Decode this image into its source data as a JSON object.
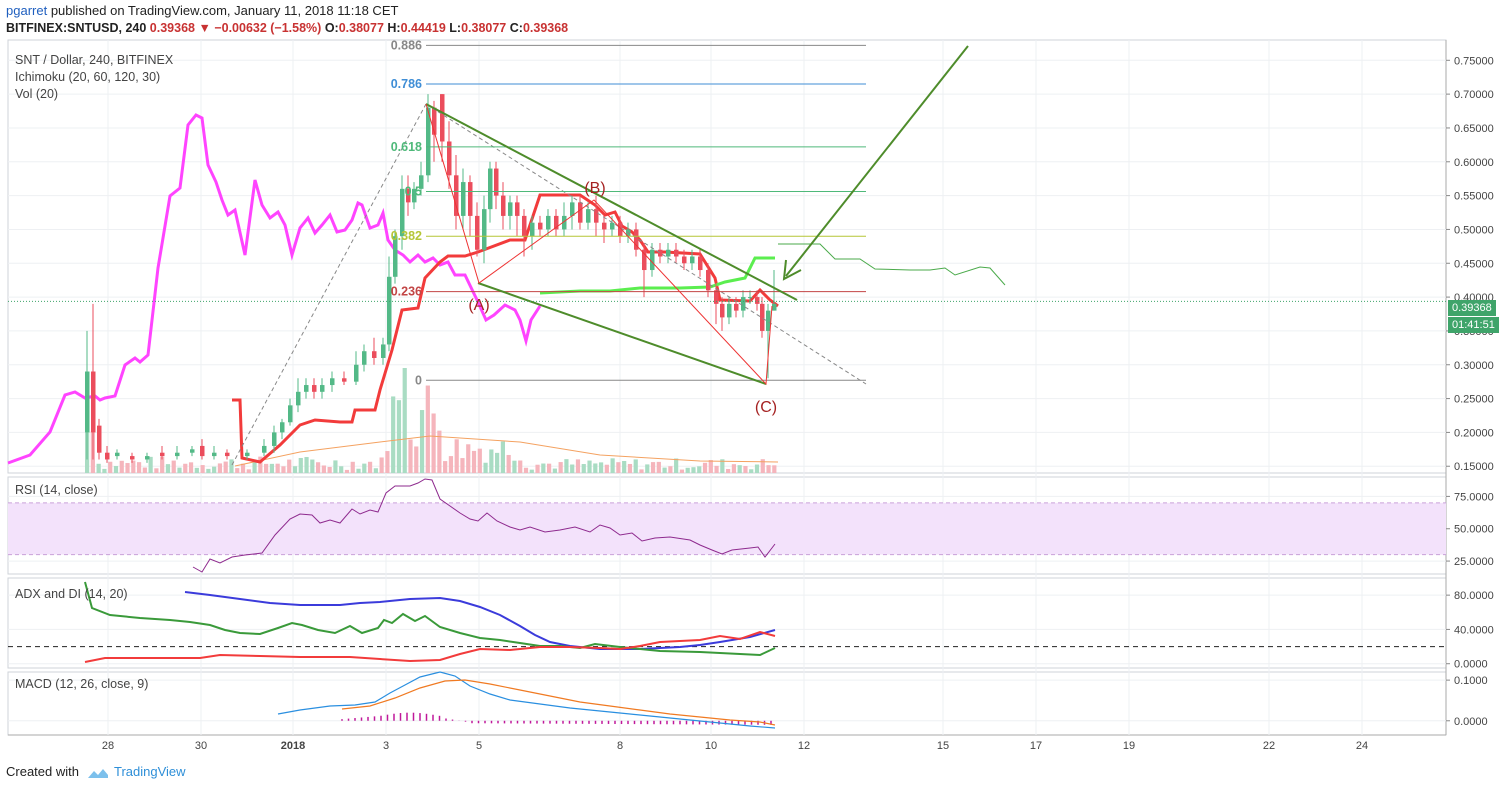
{
  "header": {
    "user": "pgarret",
    "published": " published on TradingView.com, January 11, 2018 11:18 CET",
    "symbol": "BITFINEX:SNTUSD, 240",
    "last": "0.39368",
    "change": "▼ −0.00632 (−1.58%)",
    "o_label": "O:",
    "o": "0.38077",
    "h_label": "H:",
    "h": "0.44419",
    "l_label": "L:",
    "l": "0.38077",
    "c_label": "C:",
    "c": "0.39368"
  },
  "legends": {
    "main_title": "SNT / Dollar, 240, BITFINEX",
    "ichimoku": "Ichimoku (20, 60, 120, 30)",
    "vol": "Vol (20)",
    "rsi": "RSI (14, close)",
    "adx": "ADX and DI (14, 20)",
    "macd": "MACD (12, 26, close, 9)"
  },
  "price_label": "0.39368",
  "time_label": "01:41:51",
  "footer": {
    "created": "Created with",
    "brand": "TradingView"
  },
  "colors": {
    "up": "#53b987",
    "down": "#eb4d5c",
    "magenta": "#ff44ff",
    "red_line": "#f23b3b",
    "green_line": "#5bee4f",
    "trend": "#4e8c2b",
    "rsi": "#8e2a8e",
    "adx_blue": "#3b3bdb",
    "macd": "#2a8fe0",
    "signal": "#f07a22"
  },
  "chart_data": [
    {
      "type": "candlestick",
      "title": "SNT / Dollar, 240, BITFINEX",
      "ylim": [
        0.14,
        0.78
      ],
      "y_ticks": [
        "0.15000",
        "0.20000",
        "0.25000",
        "0.30000",
        "0.35000",
        "0.40000",
        "0.45000",
        "0.50000",
        "0.55000",
        "0.60000",
        "0.65000",
        "0.70000",
        "0.75000"
      ],
      "x_ticks": [
        "28",
        "30",
        "2018",
        "3",
        "5",
        "8",
        "10",
        "12",
        "15",
        "17",
        "19",
        "22",
        "24"
      ],
      "fib_levels": [
        {
          "label": "0.886",
          "value": 0.772
        },
        {
          "label": "0.786",
          "value": 0.715
        },
        {
          "label": "0.618",
          "value": 0.622
        },
        {
          "label": "0.5",
          "value": 0.556
        },
        {
          "label": "0.382",
          "value": 0.49
        },
        {
          "label": "0.236",
          "value": 0.408
        },
        {
          "label": "0",
          "value": 0.277
        }
      ],
      "annotations": [
        "(A)",
        "(B)",
        "(C)"
      ],
      "current_price": 0.39368
    },
    {
      "type": "line",
      "title": "RSI (14, close)",
      "ylim": [
        15,
        90
      ],
      "y_ticks": [
        "25.0000",
        "50.0000",
        "75.0000"
      ],
      "band": [
        30,
        70
      ]
    },
    {
      "type": "line",
      "title": "ADX and DI (14, 20)",
      "ylim": [
        -5,
        100
      ],
      "y_ticks": [
        "0.0000",
        "40.0000",
        "80.0000"
      ],
      "threshold": 20
    },
    {
      "type": "line",
      "title": "MACD (12, 26, close, 9)",
      "ylim": [
        -0.035,
        0.12
      ],
      "y_ticks": [
        "0.0000",
        "0.1000"
      ]
    }
  ]
}
